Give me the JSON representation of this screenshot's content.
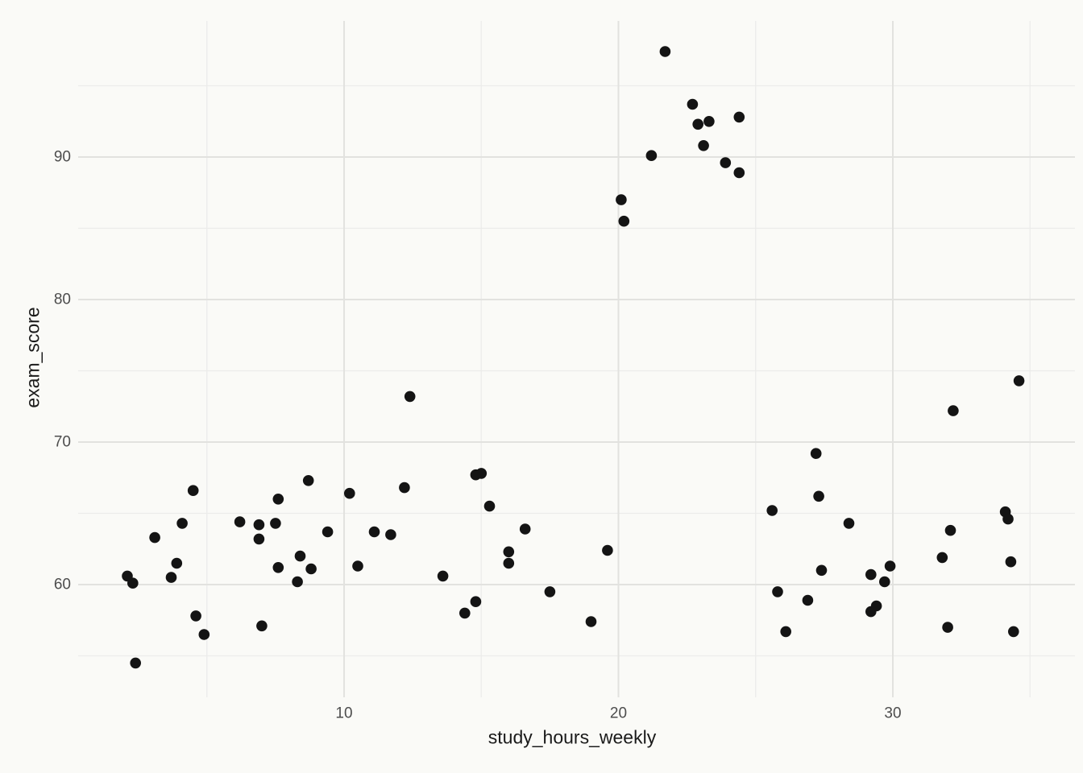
{
  "chart_data": {
    "type": "scatter",
    "title": "",
    "xlabel": "study_hours_weekly",
    "ylabel": "exam_score",
    "x_ticks": [
      10,
      20,
      30
    ],
    "y_ticks": [
      60,
      70,
      80,
      90
    ],
    "x_minor_ticks": [
      5,
      15,
      25,
      35
    ],
    "y_minor_ticks": [
      55,
      65,
      75,
      85,
      95
    ],
    "xlim": [
      0.3,
      36.6
    ],
    "ylim": [
      52.1,
      99.5
    ],
    "grid": "major and minor, no axis lines, no tick marks (minimal theme)",
    "legend_position": "none",
    "points": [
      [
        2.1,
        60.6
      ],
      [
        2.3,
        60.1
      ],
      [
        2.4,
        54.5
      ],
      [
        3.1,
        63.3
      ],
      [
        3.7,
        60.5
      ],
      [
        3.9,
        61.5
      ],
      [
        4.1,
        64.3
      ],
      [
        4.5,
        66.6
      ],
      [
        4.6,
        57.8
      ],
      [
        4.9,
        56.5
      ],
      [
        6.2,
        64.4
      ],
      [
        6.9,
        64.2
      ],
      [
        6.9,
        63.2
      ],
      [
        7.0,
        57.1
      ],
      [
        7.5,
        64.3
      ],
      [
        7.6,
        66.0
      ],
      [
        7.6,
        61.2
      ],
      [
        8.3,
        60.2
      ],
      [
        8.4,
        62.0
      ],
      [
        8.7,
        67.3
      ],
      [
        8.8,
        61.1
      ],
      [
        9.4,
        63.7
      ],
      [
        10.2,
        66.4
      ],
      [
        10.5,
        61.3
      ],
      [
        11.1,
        63.7
      ],
      [
        11.7,
        63.5
      ],
      [
        12.2,
        66.8
      ],
      [
        12.4,
        73.2
      ],
      [
        13.6,
        60.6
      ],
      [
        14.4,
        58.0
      ],
      [
        14.8,
        58.8
      ],
      [
        14.8,
        67.7
      ],
      [
        15.0,
        67.8
      ],
      [
        15.3,
        65.5
      ],
      [
        16.0,
        62.3
      ],
      [
        16.0,
        61.5
      ],
      [
        16.6,
        63.9
      ],
      [
        17.5,
        59.5
      ],
      [
        19.0,
        57.4
      ],
      [
        19.6,
        62.4
      ],
      [
        20.1,
        87.0
      ],
      [
        20.2,
        85.5
      ],
      [
        21.2,
        90.1
      ],
      [
        21.7,
        97.4
      ],
      [
        22.7,
        93.7
      ],
      [
        22.9,
        92.3
      ],
      [
        23.1,
        90.8
      ],
      [
        23.3,
        92.5
      ],
      [
        23.9,
        89.6
      ],
      [
        24.4,
        92.8
      ],
      [
        24.4,
        88.9
      ],
      [
        25.6,
        65.2
      ],
      [
        25.8,
        59.5
      ],
      [
        26.1,
        56.7
      ],
      [
        26.9,
        58.9
      ],
      [
        27.2,
        69.2
      ],
      [
        27.3,
        66.2
      ],
      [
        27.4,
        61.0
      ],
      [
        28.4,
        64.3
      ],
      [
        29.2,
        60.7
      ],
      [
        29.2,
        58.1
      ],
      [
        29.4,
        58.5
      ],
      [
        29.7,
        60.2
      ],
      [
        29.9,
        61.3
      ],
      [
        31.8,
        61.9
      ],
      [
        32.0,
        57.0
      ],
      [
        32.1,
        63.8
      ],
      [
        32.2,
        72.2
      ],
      [
        34.1,
        65.1
      ],
      [
        34.2,
        64.6
      ],
      [
        34.3,
        61.6
      ],
      [
        34.4,
        56.7
      ],
      [
        34.6,
        74.3
      ]
    ]
  },
  "style": {
    "background": "#fafaf7",
    "grid_major_color": "#e2e2df",
    "grid_minor_color": "#ececea",
    "point_color": "#141414",
    "tick_label_color": "#4d4d4d",
    "axis_title_color": "#1a1a1a"
  }
}
